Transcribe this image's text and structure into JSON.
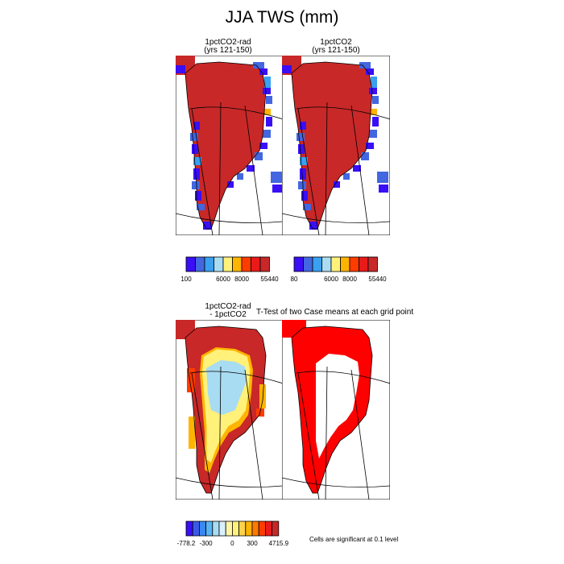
{
  "title": "JJA TWS (mm)",
  "panels": [
    {
      "title_line1": "1pctCO2-rad",
      "title_line2": "(yrs 121-150)"
    },
    {
      "title_line1": "1pctCO2",
      "title_line2": "(yrs 121-150)"
    },
    {
      "title_line1": "1pctCO2-rad",
      "title_line2": "- 1pctCO2"
    },
    {
      "title_line1": "T-Test of two Case means at each grid point",
      "title_line2": ""
    }
  ],
  "colorbars": [
    {
      "name": "cbar-top-left",
      "colors": [
        "#3a0ef6",
        "#4267e0",
        "#3aa0f0",
        "#a8dcf2",
        "#fff17a",
        "#ffb400",
        "#ff3c00",
        "#e81a1a",
        "#c82828"
      ],
      "labels": [
        "100",
        "6000",
        "8000",
        "55440"
      ]
    },
    {
      "name": "cbar-top-right",
      "colors": [
        "#3a0ef6",
        "#4267e0",
        "#3aa0f0",
        "#a8dcf2",
        "#fff17a",
        "#ffb400",
        "#ff3c00",
        "#e81a1a",
        "#c82828"
      ],
      "labels": [
        "80",
        "6000",
        "8000",
        "55440"
      ]
    },
    {
      "name": "cbar-bottom",
      "colors": [
        "#3a0ef6",
        "#3a5ae6",
        "#3a88f2",
        "#5ab4f2",
        "#a8dcf2",
        "#d8f0ff",
        "#fff6a8",
        "#fff17a",
        "#ffd24a",
        "#ffb400",
        "#ff7a00",
        "#ff3c00",
        "#e81a1a",
        "#c82828"
      ],
      "labels": [
        "-778.2",
        "-300",
        "0",
        "300",
        "4715.9"
      ]
    }
  ],
  "note": "Cells are significant at 0.1 level",
  "chart_data": {
    "type": "heatmap",
    "title": "JJA TWS (mm)",
    "variable": "TWS",
    "units": "mm",
    "season": "JJA",
    "map_region": "Greenland",
    "maps": [
      {
        "title": "1pctCO2-rad (yrs 121-150)",
        "colorbar_labels": [
          100,
          6000,
          8000,
          55440
        ],
        "interior_value_category": "55440 (dark red)",
        "margin_values": "low (blue/purple)"
      },
      {
        "title": "1pctCO2 (yrs 121-150)",
        "colorbar_labels": [
          80,
          6000,
          8000,
          55440
        ],
        "interior_value_category": "55440 (dark red)",
        "margin_values": "low (blue/purple)"
      },
      {
        "title": "1pctCO2-rad - 1pctCO2",
        "colorbar_labels": [
          -778.2,
          -300,
          0,
          300,
          4715.9
        ],
        "pattern": "positive (red/orange) along margins, near zero (light blue/yellow) in interior"
      },
      {
        "title": "T-Test of two Case means at each grid point",
        "significance_level": 0.1,
        "significant_color": "#ff0000",
        "pattern": "significant cells form a ring along the ice sheet margin"
      }
    ]
  }
}
